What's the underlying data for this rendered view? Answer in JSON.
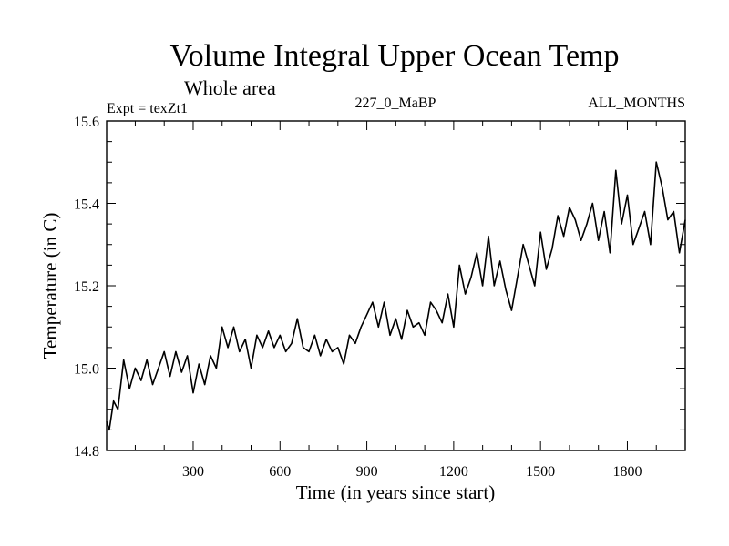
{
  "chart_data": {
    "type": "line",
    "title": "Volume Integral Upper Ocean Temp",
    "subtitle": "Whole area",
    "experiment": "Expt = texZt1",
    "period": "227_0_MaBP",
    "months": "ALL_MONTHS",
    "xlabel": "Time (in years since start)",
    "ylabel": "Temperature (in C)",
    "xlim": [
      1,
      2000
    ],
    "ylim": [
      14.8,
      15.6
    ],
    "xticks": [
      300,
      600,
      900,
      1200,
      1500,
      1800
    ],
    "xtick_labels": [
      "300",
      "600",
      "900",
      "1200",
      "1500",
      "1800"
    ],
    "yticks": [
      14.8,
      15.0,
      15.2,
      15.4,
      15.6
    ],
    "ytick_labels": [
      "14.8",
      "15.0",
      "15.2",
      "15.4",
      "15.6"
    ],
    "series": [
      {
        "name": "Volume integral upper ocean temperature",
        "color": "#000000",
        "x": [
          1,
          10,
          25,
          40,
          60,
          80,
          100,
          120,
          140,
          160,
          180,
          200,
          220,
          240,
          260,
          280,
          300,
          320,
          340,
          360,
          380,
          400,
          420,
          440,
          460,
          480,
          500,
          520,
          540,
          560,
          580,
          600,
          620,
          640,
          660,
          680,
          700,
          720,
          740,
          760,
          780,
          800,
          820,
          840,
          860,
          880,
          900,
          920,
          940,
          960,
          980,
          1000,
          1020,
          1040,
          1060,
          1080,
          1100,
          1120,
          1140,
          1160,
          1180,
          1200,
          1220,
          1240,
          1260,
          1280,
          1300,
          1320,
          1340,
          1360,
          1380,
          1400,
          1420,
          1440,
          1460,
          1480,
          1500,
          1520,
          1540,
          1560,
          1580,
          1600,
          1620,
          1640,
          1660,
          1680,
          1700,
          1720,
          1740,
          1760,
          1780,
          1800,
          1820,
          1840,
          1860,
          1880,
          1900,
          1920,
          1940,
          1960,
          1980,
          2000
        ],
        "values": [
          14.87,
          14.85,
          14.92,
          14.9,
          15.02,
          14.95,
          15.0,
          14.97,
          15.02,
          14.96,
          15.0,
          15.04,
          14.98,
          15.04,
          14.99,
          15.03,
          14.94,
          15.01,
          14.96,
          15.03,
          15.0,
          15.1,
          15.05,
          15.1,
          15.04,
          15.07,
          15.0,
          15.08,
          15.05,
          15.09,
          15.05,
          15.08,
          15.04,
          15.06,
          15.12,
          15.05,
          15.04,
          15.08,
          15.03,
          15.07,
          15.04,
          15.05,
          15.01,
          15.08,
          15.06,
          15.1,
          15.13,
          15.16,
          15.1,
          15.16,
          15.08,
          15.12,
          15.07,
          15.14,
          15.1,
          15.11,
          15.08,
          15.16,
          15.14,
          15.11,
          15.18,
          15.1,
          15.25,
          15.18,
          15.22,
          15.28,
          15.2,
          15.32,
          15.2,
          15.26,
          15.19,
          15.14,
          15.22,
          15.3,
          15.25,
          15.2,
          15.33,
          15.24,
          15.29,
          15.37,
          15.32,
          15.39,
          15.36,
          15.31,
          15.35,
          15.4,
          15.31,
          15.38,
          15.28,
          15.48,
          15.35,
          15.42,
          15.3,
          15.34,
          15.38,
          15.3,
          15.5,
          15.44,
          15.36,
          15.38,
          15.28,
          15.36
        ]
      }
    ]
  }
}
